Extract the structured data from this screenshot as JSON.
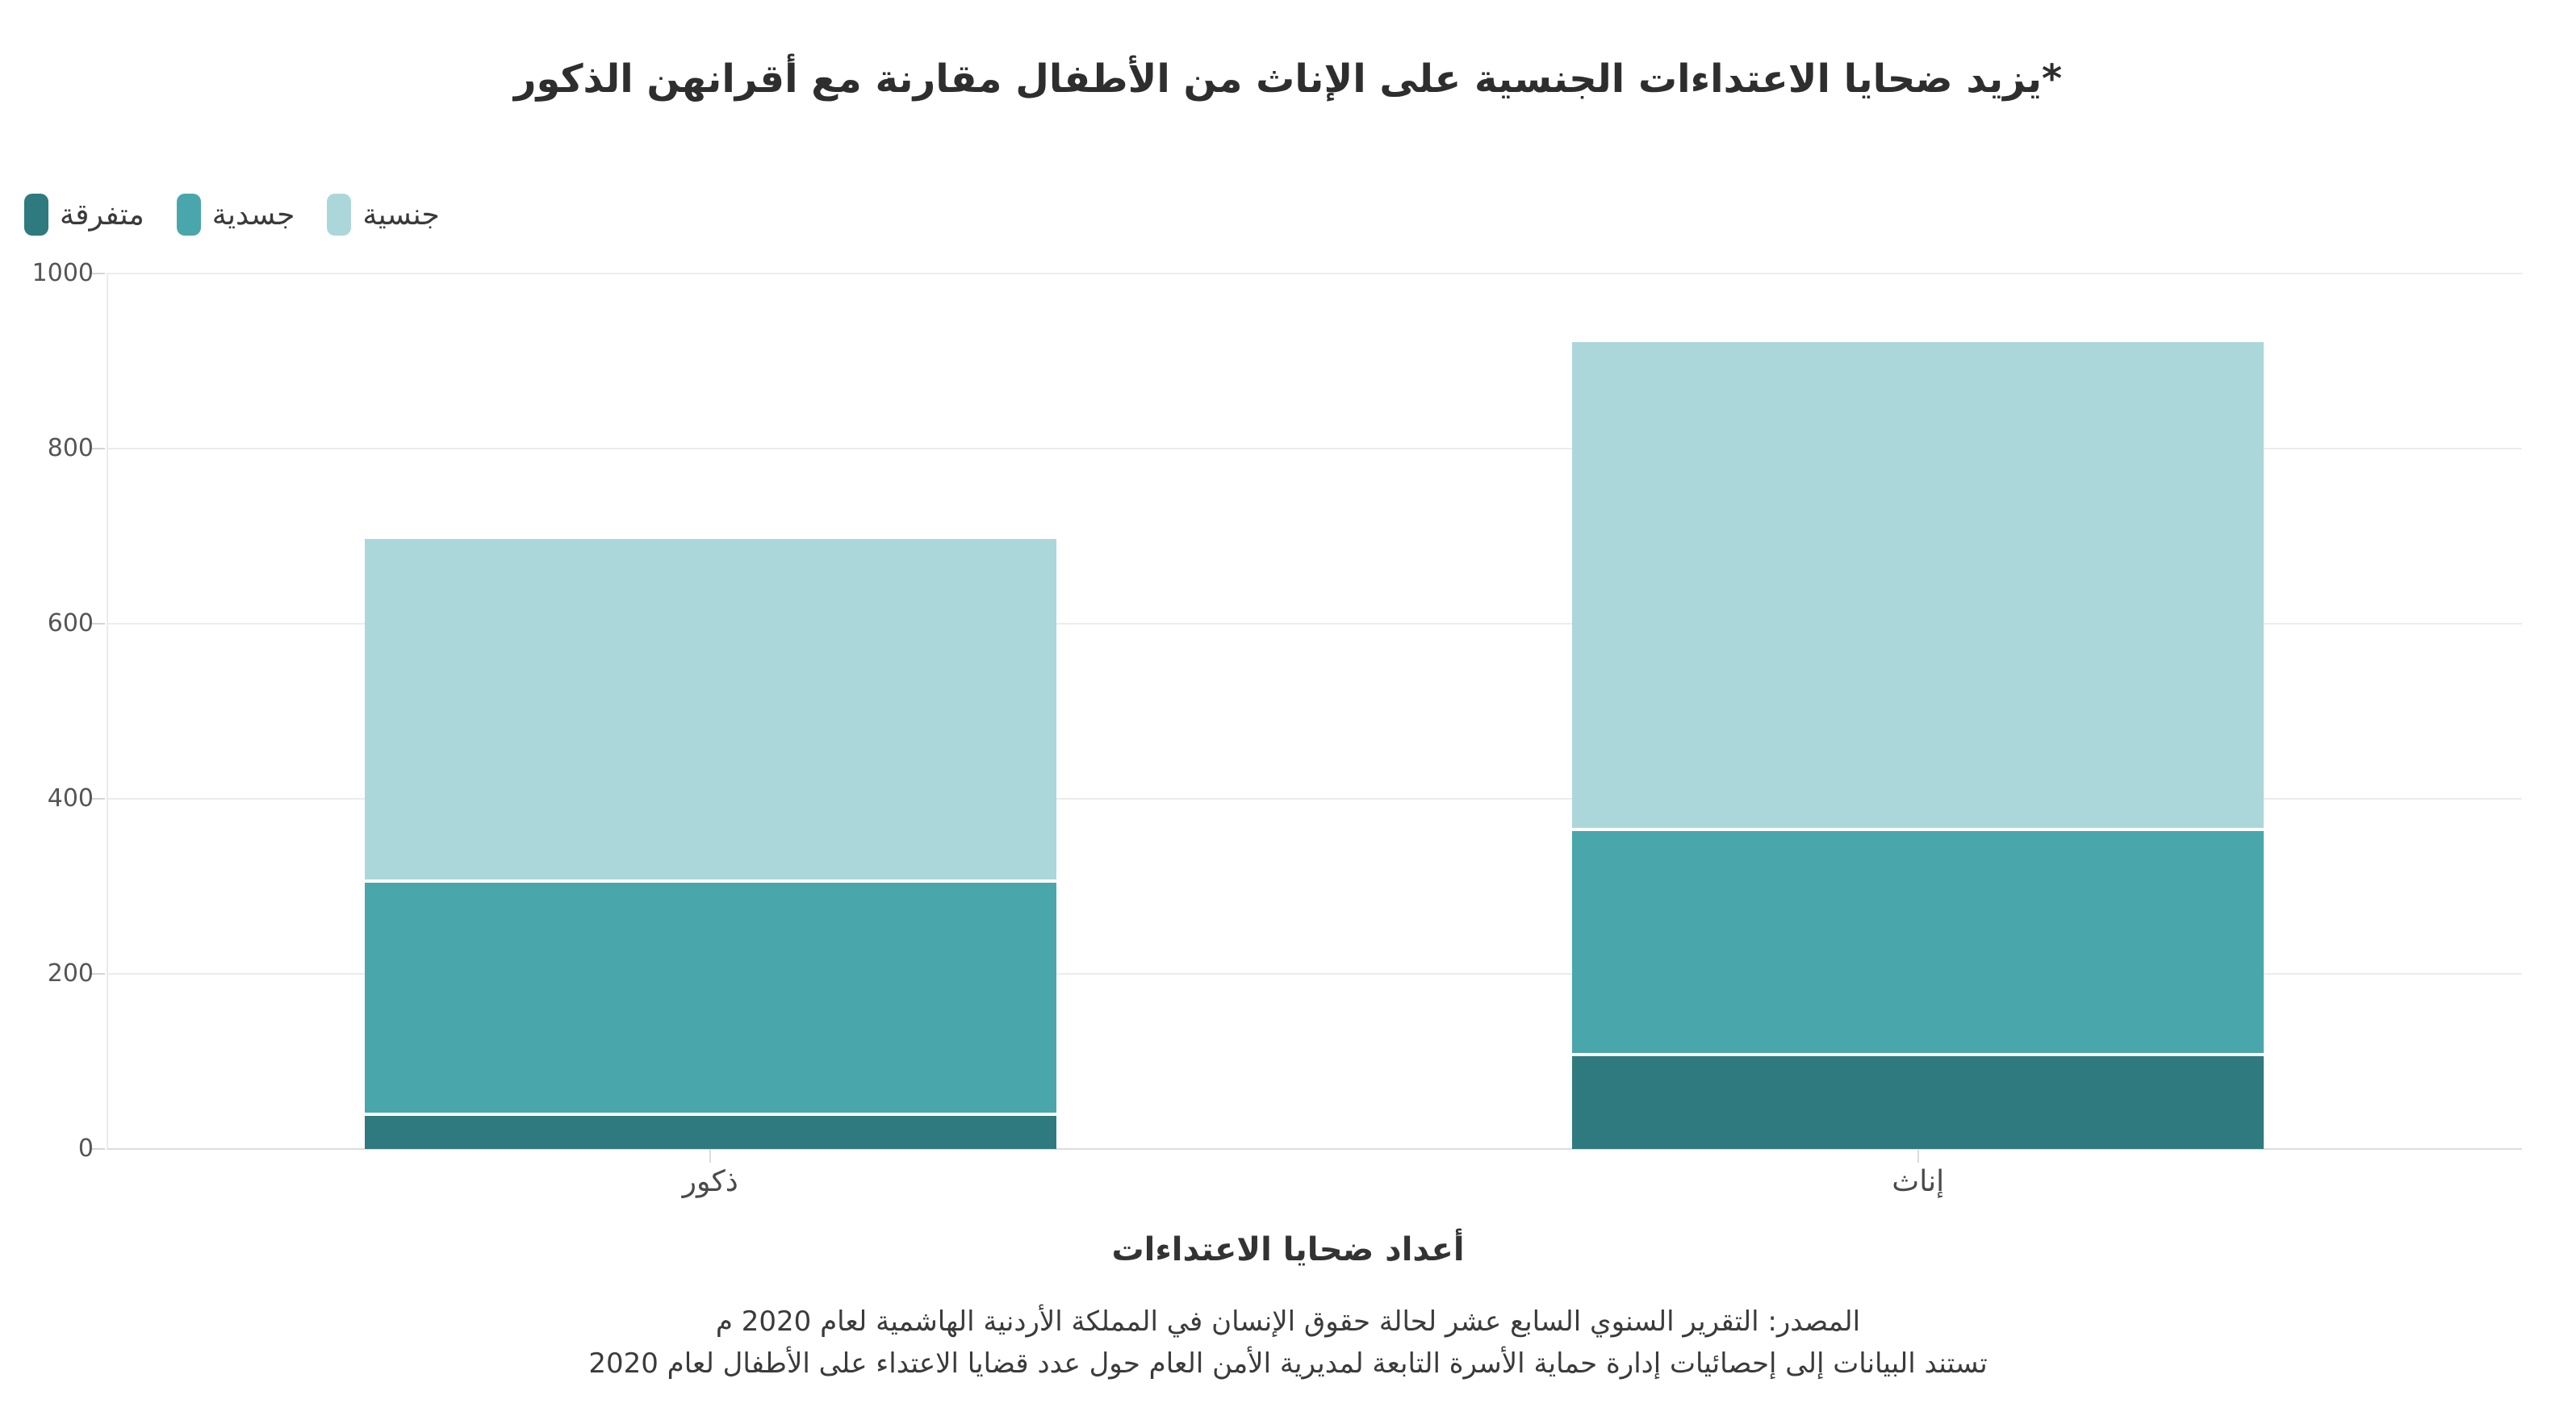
{
  "title": "*يزيد ضحايا الاعتداءات الجنسية على الإناث من الأطفال مقارنة مع أقرانهن الذكور",
  "footer": {
    "source_line1": "المصدر: التقرير السنوي السابع عشر لحالة حقوق الإنسان في المملكة الأردنية الهاشمية لعام 2020 م",
    "source_line2": "تستند البيانات إلى إحصائيات إدارة حماية الأسرة التابعة لمديرية الأمن العام حول عدد قضايا الاعتداء على الأطفال لعام 2020"
  },
  "chart_data": {
    "type": "bar",
    "stacked": true,
    "rtl": true,
    "grid": true,
    "legend_position": "top-left",
    "background": "#ffffff",
    "categories": [
      "ذكور",
      "إناث"
    ],
    "category_ids": [
      "males",
      "females"
    ],
    "series": [
      {
        "id": "misc",
        "name": "متفرقة",
        "color": "#2F7A7E",
        "values": [
          40,
          108
        ]
      },
      {
        "id": "physical",
        "name": "جسدية",
        "color": "#49A7AC",
        "values": [
          266,
          257
        ]
      },
      {
        "id": "sexual",
        "name": "جنسية",
        "color": "#ABD7DA",
        "values": [
          391,
          557
        ]
      }
    ],
    "xlabel": "أعداد ضحايا الاعتداءات",
    "ylabel": "",
    "ylim": [
      0,
      1000
    ],
    "yticks": [
      0,
      200,
      400,
      600,
      800,
      1000
    ]
  }
}
